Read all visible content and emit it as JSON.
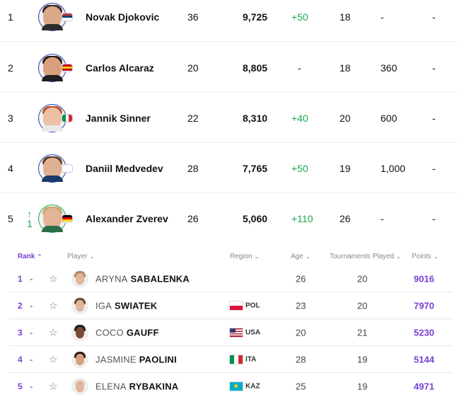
{
  "atp": {
    "rows": [
      {
        "rank": "1",
        "movement": "",
        "name": "Novak Djokovic",
        "age": "36",
        "points": "9,725",
        "change": "+50",
        "tournaments": "18",
        "dropping": "-",
        "next_best": "-",
        "flag_icon": "serbia-flag-icon",
        "flag_colors": [
          "#c6363c",
          "#0c4076",
          "#ffffff"
        ]
      },
      {
        "rank": "2",
        "movement": "",
        "name": "Carlos Alcaraz",
        "age": "20",
        "points": "8,805",
        "change": "-",
        "tournaments": "18",
        "dropping": "360",
        "next_best": "-",
        "flag_icon": "spain-flag-icon",
        "flag_colors": [
          "#c60b1e",
          "#ffc400",
          "#c60b1e"
        ]
      },
      {
        "rank": "3",
        "movement": "",
        "name": "Jannik Sinner",
        "age": "22",
        "points": "8,310",
        "change": "+40",
        "tournaments": "20",
        "dropping": "600",
        "next_best": "-",
        "flag_icon": "italy-flag-icon",
        "flag_colors": [
          "#009246",
          "#ffffff",
          "#ce2b37"
        ]
      },
      {
        "rank": "4",
        "movement": "",
        "name": "Daniil Medvedev",
        "age": "28",
        "points": "7,765",
        "change": "+50",
        "tournaments": "19",
        "dropping": "1,000",
        "next_best": "-",
        "flag_icon": "neutral-flag-icon",
        "flag_colors": [
          "#ffffff",
          "#ffffff",
          "#ffffff"
        ]
      },
      {
        "rank": "5",
        "movement_arrow": "↑",
        "movement": "1",
        "name": "Alexander Zverev",
        "age": "26",
        "points": "5,060",
        "change": "+110",
        "tournaments": "26",
        "dropping": "-",
        "next_best": "-",
        "flag_icon": "germany-flag-icon",
        "flag_colors": [
          "#000000",
          "#dd0000",
          "#ffce00"
        ]
      }
    ]
  },
  "wta": {
    "headers": {
      "rank": "Rank",
      "player": "Player",
      "region": "Region",
      "age": "Age",
      "tournaments": "Tournaments Played",
      "points": "Points"
    },
    "rows": [
      {
        "rank": "1",
        "movement": "-",
        "first": "ARYNA",
        "last": "SABALENKA",
        "region": "",
        "age": "26",
        "tournaments": "20",
        "points": "9016",
        "flag_icon": "",
        "flag_colors": []
      },
      {
        "rank": "2",
        "movement": "-",
        "first": "IGA",
        "last": "SWIATEK",
        "region": "POL",
        "age": "23",
        "tournaments": "20",
        "points": "7970",
        "flag_icon": "poland-flag-icon",
        "flag_colors": [
          "#ffffff",
          "#dc143c"
        ]
      },
      {
        "rank": "3",
        "movement": "-",
        "first": "COCO",
        "last": "GAUFF",
        "region": "USA",
        "age": "20",
        "tournaments": "21",
        "points": "5230",
        "flag_icon": "usa-flag-icon",
        "flag_colors": [
          "#b22234",
          "#ffffff",
          "#3c3b6e"
        ]
      },
      {
        "rank": "4",
        "movement": "-",
        "first": "JASMINE",
        "last": "PAOLINI",
        "region": "ITA",
        "age": "28",
        "tournaments": "19",
        "points": "5144",
        "flag_icon": "italy-flag-icon",
        "flag_colors": [
          "#009246",
          "#ffffff",
          "#ce2b37"
        ]
      },
      {
        "rank": "5",
        "movement": "-",
        "first": "ELENA",
        "last": "RYBAKINA",
        "region": "KAZ",
        "age": "25",
        "tournaments": "19",
        "points": "4971",
        "flag_icon": "kazakhstan-flag-icon",
        "flag_colors": [
          "#00afca",
          "#fec50c"
        ]
      }
    ]
  },
  "icons": {
    "star": "☆",
    "chevron_down": "⌄",
    "chevron_up": "⌃"
  },
  "colors": {
    "accent": "#7b3fd6",
    "positive": "#1ea84a",
    "avatar_border": "#2b3fb0"
  }
}
